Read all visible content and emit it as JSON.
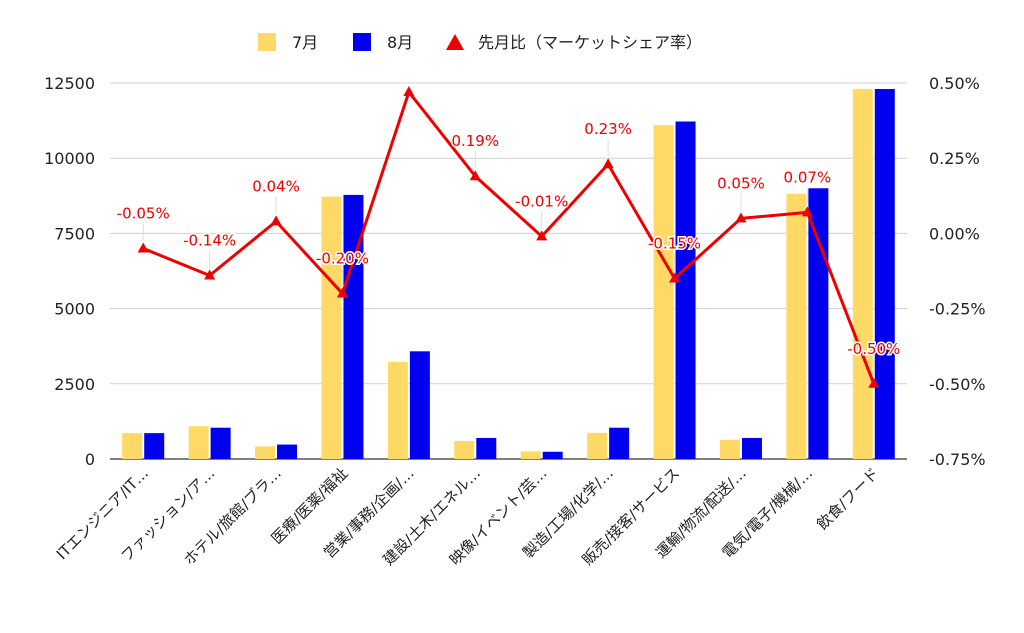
{
  "chart_data": {
    "type": "bar",
    "categories": [
      "ITエンジニア/IT…",
      "ファッション/ア…",
      "ホテル/旅館/ブラ…",
      "医療/医薬/福祉",
      "営業/事務/企画/…",
      "建設/土木/エネル…",
      "映像/イベント/芸…",
      "製造/工場/化学/…",
      "販売/接客/サービス",
      "運輸/物流/配送/…",
      "電気/電子/機械/…",
      "飲食/フード"
    ],
    "series": [
      {
        "name": "7月",
        "type": "bar",
        "axis": "left",
        "color": "#FFD966",
        "values": [
          860,
          1090,
          420,
          8720,
          3230,
          600,
          250,
          870,
          11100,
          640,
          8820,
          12300
        ]
      },
      {
        "name": "8月",
        "type": "bar",
        "axis": "left",
        "color": "#0000EE",
        "values": [
          860,
          1040,
          480,
          8780,
          3580,
          700,
          240,
          1040,
          11220,
          700,
          9000,
          12300
        ]
      },
      {
        "name": "先月比（マーケットシェア率）",
        "type": "line",
        "axis": "right",
        "color": "#EE0000",
        "values": [
          -0.05,
          -0.14,
          0.04,
          -0.2,
          0.47,
          0.19,
          -0.01,
          0.23,
          -0.15,
          0.05,
          0.07,
          -0.5
        ],
        "labels": [
          "-0.05%",
          "-0.14%",
          "0.04%",
          "-0.20%",
          "",
          "0.19%",
          "-0.01%",
          "0.23%",
          "-0.15%",
          "0.05%",
          "0.07%",
          "-0.50%"
        ]
      }
    ],
    "y_left": {
      "min": 0,
      "max": 12500,
      "ticks": [
        "0",
        "2500",
        "5000",
        "7500",
        "10000",
        "12500"
      ]
    },
    "y_right": {
      "min": -0.75,
      "max": 0.5,
      "ticks": [
        "-0.75%",
        "-0.50%",
        "-0.25%",
        "0.00%",
        "0.25%",
        "0.50%"
      ]
    },
    "grid": true,
    "legend_position": "top"
  }
}
